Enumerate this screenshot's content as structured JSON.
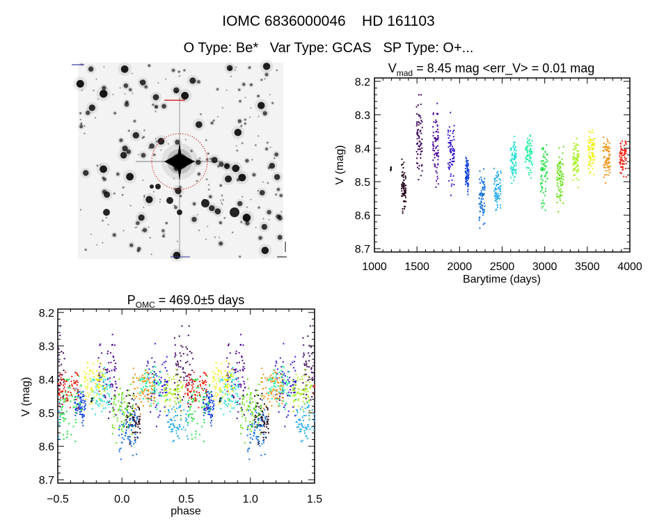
{
  "header": {
    "title": "IOMC 6836000046    HD 161103",
    "subtitle": "O Type: Be*   Var Type: GCAS   SP Type: O+..."
  },
  "colors": {
    "star_circle": "#cc2020",
    "image_background": "#f3f3f3"
  },
  "chart_data": [
    {
      "type": "scatter",
      "title_main": "V",
      "title_sub": "mad",
      "title_rest": " = 8.45 mag <err_V> = 0.01 mag",
      "xlabel": "Barytime (days)",
      "ylabel": "V (mag)",
      "xlim": [
        1000,
        4000
      ],
      "ylim": [
        8.19,
        8.71
      ],
      "y_inverted": false,
      "xticks": [
        "1000",
        "1500",
        "2000",
        "2500",
        "3000",
        "3500",
        "4000"
      ],
      "yticks": [
        "8.2",
        "8.3",
        "8.4",
        "8.5",
        "8.6",
        "8.7"
      ],
      "grid": false,
      "color_scale": "rainbow by time",
      "seasons": [
        {
          "t": [
            1190,
            1200
          ],
          "v": [
            8.455,
            8.475
          ],
          "color": "#000000"
        },
        {
          "t": [
            1318,
            1373
          ],
          "v": [
            8.42,
            8.61
          ],
          "color": "#200018"
        },
        {
          "t": [
            1495,
            1563
          ],
          "v": [
            8.23,
            8.52
          ],
          "color": "#3a0058"
        },
        {
          "t": [
            1686,
            1754
          ],
          "v": [
            8.26,
            8.52
          ],
          "color": "#4a0098"
        },
        {
          "t": [
            1863,
            1939
          ],
          "v": [
            8.28,
            8.56
          ],
          "color": "#3010d0"
        },
        {
          "t": [
            2067,
            2108
          ],
          "v": [
            8.4,
            8.54
          ],
          "color": "#1040e0"
        },
        {
          "t": [
            2230,
            2298
          ],
          "v": [
            8.44,
            8.66
          ],
          "color": "#1070e0"
        },
        {
          "t": [
            2407,
            2489
          ],
          "v": [
            8.44,
            8.61
          ],
          "color": "#20a8f0"
        },
        {
          "t": [
            2598,
            2666
          ],
          "v": [
            8.35,
            8.52
          ],
          "color": "#20e0d0"
        },
        {
          "t": [
            2775,
            2857
          ],
          "v": [
            8.34,
            8.5
          ],
          "color": "#20f0a0"
        },
        {
          "t": [
            2952,
            3033
          ],
          "v": [
            8.36,
            8.6
          ],
          "color": "#20e040"
        },
        {
          "t": [
            3142,
            3224
          ],
          "v": [
            8.38,
            8.59
          ],
          "color": "#60e010"
        },
        {
          "t": [
            3333,
            3401
          ],
          "v": [
            8.35,
            8.52
          ],
          "color": "#a8f020"
        },
        {
          "t": [
            3510,
            3592
          ],
          "v": [
            8.33,
            8.49
          ],
          "color": "#f0f010"
        },
        {
          "t": [
            3687,
            3769
          ],
          "v": [
            8.35,
            8.52
          ],
          "color": "#f09010"
        },
        {
          "t": [
            3878,
            3959
          ],
          "v": [
            8.35,
            8.5
          ],
          "color": "#f02010"
        }
      ]
    },
    {
      "type": "scatter",
      "title_main": "P",
      "title_sub": "OMC",
      "title_rest": " = 469.0±5 days",
      "period_days": 469.0,
      "xlabel": "phase",
      "ylabel": "V (mag)",
      "xlim": [
        -0.5,
        1.5
      ],
      "ylim": [
        8.19,
        8.71
      ],
      "xticks": [
        "-0.5",
        "0.0",
        "0.5",
        "1.0",
        "1.5"
      ],
      "yticks": [
        "8.2",
        "8.3",
        "8.4",
        "8.5",
        "8.6",
        "8.7"
      ],
      "grid": false,
      "note_points": "same observations as light curve, folded on period"
    }
  ]
}
